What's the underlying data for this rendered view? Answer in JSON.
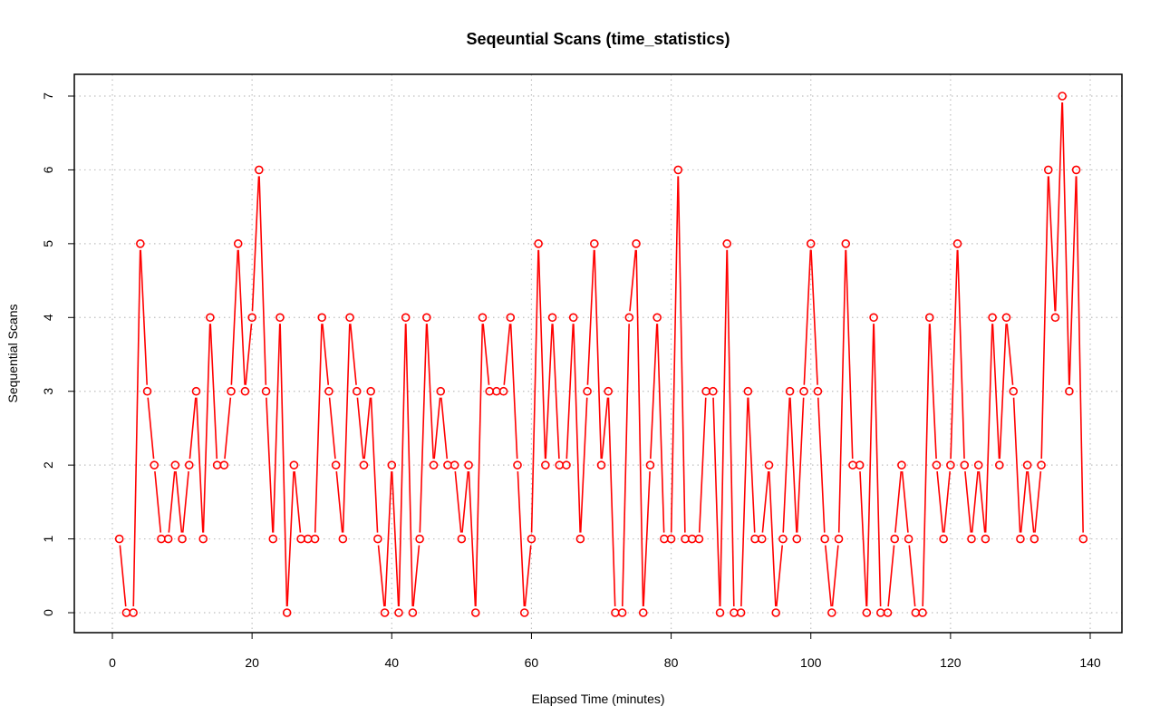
{
  "chart_data": {
    "type": "line",
    "title": "Seqeuntial Scans (time_statistics)",
    "xlabel": "Elapsed Time (minutes)",
    "ylabel": "Sequential Scans",
    "xlim": [
      1,
      139
    ],
    "ylim": [
      0,
      7
    ],
    "x_ticks": [
      "0",
      "20",
      "40",
      "60",
      "80",
      "100",
      "120",
      "140"
    ],
    "y_ticks": [
      "0",
      "1",
      "2",
      "3",
      "4",
      "5",
      "6",
      "7"
    ],
    "grid": true,
    "grid_style": "dotted",
    "marker": "open-circle",
    "series_color": "#ff0000",
    "x": [
      1,
      2,
      3,
      4,
      5,
      6,
      7,
      8,
      9,
      10,
      11,
      12,
      13,
      14,
      15,
      16,
      17,
      18,
      19,
      20,
      21,
      22,
      23,
      24,
      25,
      26,
      27,
      28,
      29,
      30,
      31,
      32,
      33,
      34,
      35,
      36,
      37,
      38,
      39,
      40,
      41,
      42,
      43,
      44,
      45,
      46,
      47,
      48,
      49,
      50,
      51,
      52,
      53,
      54,
      55,
      56,
      57,
      58,
      59,
      60,
      61,
      62,
      63,
      64,
      65,
      66,
      67,
      68,
      69,
      70,
      71,
      72,
      73,
      74,
      75,
      76,
      77,
      78,
      79,
      80,
      81,
      82,
      83,
      84,
      85,
      86,
      87,
      88,
      89,
      90,
      91,
      92,
      93,
      94,
      95,
      96,
      97,
      98,
      99,
      100,
      101,
      102,
      103,
      104,
      105,
      106,
      107,
      108,
      109,
      110,
      111,
      112,
      113,
      114,
      115,
      116,
      117,
      118,
      119,
      120,
      121,
      122,
      123,
      124,
      125,
      126,
      127,
      128,
      129,
      130,
      131,
      132,
      133,
      134,
      135,
      136,
      137,
      138,
      139
    ],
    "y": [
      1,
      0,
      0,
      5,
      3,
      2,
      1,
      1,
      2,
      1,
      2,
      3,
      1,
      4,
      2,
      2,
      3,
      5,
      3,
      4,
      6,
      3,
      1,
      4,
      0,
      2,
      1,
      1,
      1,
      4,
      3,
      2,
      1,
      4,
      3,
      2,
      3,
      1,
      0,
      2,
      0,
      4,
      0,
      1,
      4,
      2,
      3,
      2,
      2,
      1,
      2,
      0,
      4,
      3,
      3,
      3,
      4,
      2,
      0,
      1,
      5,
      2,
      4,
      2,
      2,
      4,
      1,
      3,
      5,
      2,
      3,
      0,
      0,
      4,
      5,
      0,
      2,
      4,
      1,
      1,
      6,
      1,
      1,
      1,
      3,
      3,
      0,
      5,
      0,
      0,
      3,
      1,
      1,
      2,
      0,
      1,
      3,
      1,
      3,
      5,
      3,
      1,
      0,
      1,
      5,
      2,
      2,
      0,
      4,
      0,
      0,
      1,
      2,
      1,
      0,
      0,
      4,
      2,
      1,
      2,
      5,
      2,
      1,
      2,
      1,
      4,
      2,
      4,
      3,
      1,
      2,
      1,
      2,
      6,
      4,
      7,
      3,
      6,
      1
    ]
  }
}
